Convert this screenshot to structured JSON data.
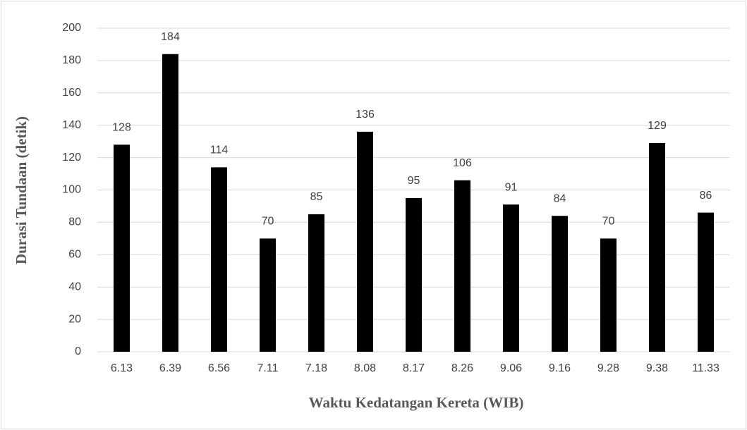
{
  "chart_data": {
    "type": "bar",
    "xlabel": "Waktu Kedatangan Kereta (WIB)",
    "ylabel": "Durasi Tundaan (detik)",
    "categories": [
      "6.13",
      "6.39",
      "6.56",
      "7.11",
      "7.18",
      "8.08",
      "8.17",
      "8.26",
      "9.06",
      "9.16",
      "9.28",
      "9.38",
      "11.33"
    ],
    "values": [
      128,
      184,
      114,
      70,
      85,
      136,
      95,
      106,
      91,
      84,
      70,
      129,
      86
    ],
    "color": "#000000",
    "ylim": [
      0,
      200
    ],
    "yticks": [
      0,
      20,
      40,
      60,
      80,
      100,
      120,
      140,
      160,
      180,
      200
    ],
    "grid": true
  }
}
